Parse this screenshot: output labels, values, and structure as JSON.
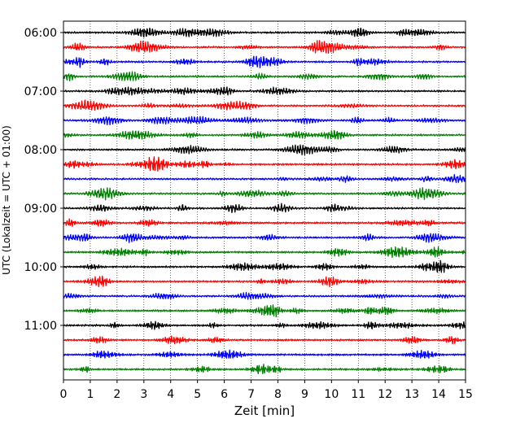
{
  "chart_data": {
    "type": "line",
    "title": "",
    "xlabel": "Zeit  [min]",
    "ylabel": "UTC (Lokalzeit = UTC + 01:00)",
    "xlim": [
      0,
      15
    ],
    "x_ticks": [
      "0",
      "1",
      "2",
      "3",
      "4",
      "5",
      "6",
      "7",
      "8",
      "9",
      "10",
      "11",
      "12",
      "13",
      "14",
      "15"
    ],
    "y_ticks": [
      "06:00",
      "07:00",
      "08:00",
      "09:00",
      "10:00",
      "11:00"
    ],
    "grid": "vertical dotted",
    "trace_interval_minutes": 15,
    "trace_count": 24,
    "trace_colors": [
      "#000000",
      "#ff0000",
      "#0000ff",
      "#008000"
    ]
  }
}
